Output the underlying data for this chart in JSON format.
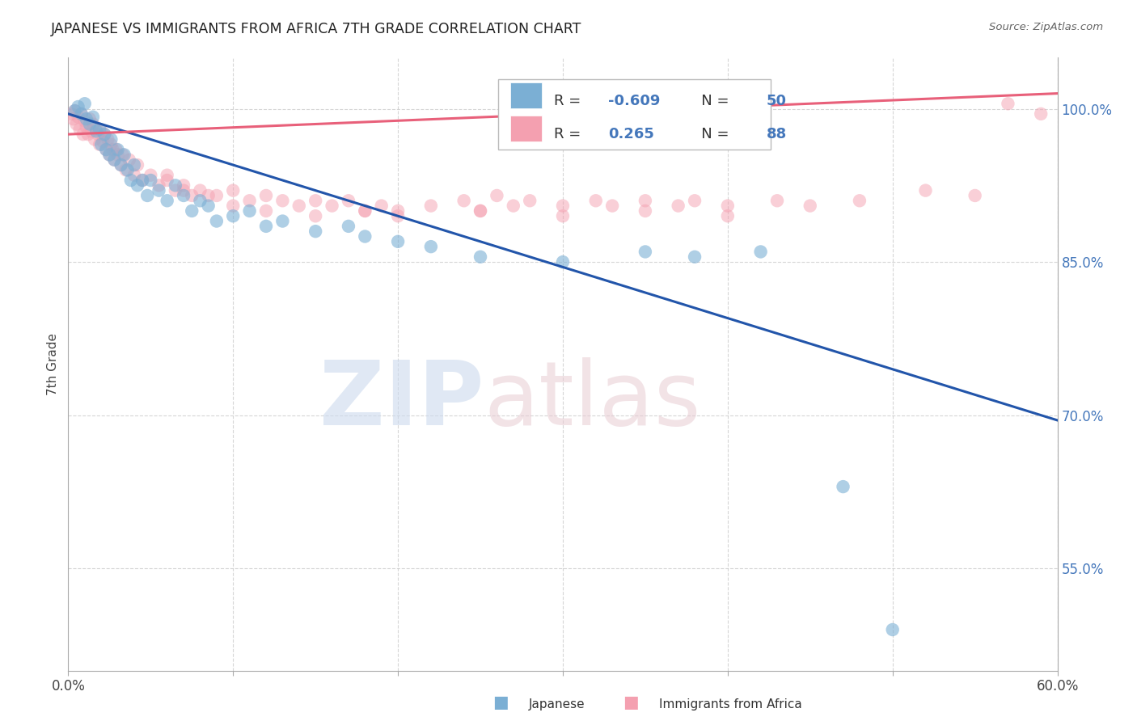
{
  "title": "JAPANESE VS IMMIGRANTS FROM AFRICA 7TH GRADE CORRELATION CHART",
  "source": "Source: ZipAtlas.com",
  "ylabel": "7th Grade",
  "xlim": [
    0.0,
    60.0
  ],
  "ylim": [
    45.0,
    105.0
  ],
  "yticks": [
    55.0,
    70.0,
    85.0,
    100.0
  ],
  "xtick_positions": [
    0,
    10,
    20,
    30,
    40,
    50,
    60
  ],
  "legend_japanese_R": "-0.609",
  "legend_japanese_N": "50",
  "legend_africa_R": "0.265",
  "legend_africa_N": "88",
  "japanese_color": "#7bafd4",
  "africa_color": "#f4a0b0",
  "japanese_line_color": "#2255aa",
  "africa_line_color": "#e8607a",
  "ytick_color": "#4477bb",
  "japanese_points": [
    [
      0.4,
      99.8
    ],
    [
      0.6,
      100.2
    ],
    [
      0.8,
      99.5
    ],
    [
      1.0,
      100.5
    ],
    [
      1.1,
      99.0
    ],
    [
      1.3,
      98.5
    ],
    [
      1.5,
      99.2
    ],
    [
      1.7,
      97.8
    ],
    [
      1.9,
      98.0
    ],
    [
      2.0,
      96.5
    ],
    [
      2.2,
      97.5
    ],
    [
      2.3,
      96.0
    ],
    [
      2.5,
      95.5
    ],
    [
      2.6,
      97.0
    ],
    [
      2.8,
      95.0
    ],
    [
      3.0,
      96.0
    ],
    [
      3.2,
      94.5
    ],
    [
      3.4,
      95.5
    ],
    [
      3.6,
      94.0
    ],
    [
      3.8,
      93.0
    ],
    [
      4.0,
      94.5
    ],
    [
      4.2,
      92.5
    ],
    [
      4.5,
      93.0
    ],
    [
      4.8,
      91.5
    ],
    [
      5.0,
      93.0
    ],
    [
      5.5,
      92.0
    ],
    [
      6.0,
      91.0
    ],
    [
      6.5,
      92.5
    ],
    [
      7.0,
      91.5
    ],
    [
      7.5,
      90.0
    ],
    [
      8.0,
      91.0
    ],
    [
      8.5,
      90.5
    ],
    [
      9.0,
      89.0
    ],
    [
      10.0,
      89.5
    ],
    [
      11.0,
      90.0
    ],
    [
      12.0,
      88.5
    ],
    [
      13.0,
      89.0
    ],
    [
      15.0,
      88.0
    ],
    [
      17.0,
      88.5
    ],
    [
      18.0,
      87.5
    ],
    [
      20.0,
      87.0
    ],
    [
      22.0,
      86.5
    ],
    [
      25.0,
      85.5
    ],
    [
      30.0,
      85.0
    ],
    [
      35.0,
      86.0
    ],
    [
      38.0,
      85.5
    ],
    [
      42.0,
      86.0
    ],
    [
      47.0,
      63.0
    ],
    [
      50.0,
      49.0
    ]
  ],
  "africa_points": [
    [
      0.2,
      99.5
    ],
    [
      0.3,
      99.0
    ],
    [
      0.4,
      99.8
    ],
    [
      0.5,
      98.5
    ],
    [
      0.6,
      99.2
    ],
    [
      0.7,
      98.0
    ],
    [
      0.8,
      99.5
    ],
    [
      0.9,
      97.5
    ],
    [
      1.0,
      98.8
    ],
    [
      1.1,
      98.2
    ],
    [
      1.2,
      97.5
    ],
    [
      1.3,
      99.0
    ],
    [
      1.4,
      97.8
    ],
    [
      1.5,
      98.5
    ],
    [
      1.6,
      97.0
    ],
    [
      1.7,
      98.0
    ],
    [
      1.8,
      97.5
    ],
    [
      1.9,
      96.5
    ],
    [
      2.0,
      97.8
    ],
    [
      2.1,
      96.8
    ],
    [
      2.2,
      97.5
    ],
    [
      2.3,
      96.0
    ],
    [
      2.4,
      97.0
    ],
    [
      2.5,
      95.5
    ],
    [
      2.6,
      96.5
    ],
    [
      2.7,
      96.0
    ],
    [
      2.8,
      95.0
    ],
    [
      2.9,
      96.0
    ],
    [
      3.0,
      95.5
    ],
    [
      3.2,
      94.5
    ],
    [
      3.3,
      95.5
    ],
    [
      3.5,
      94.0
    ],
    [
      3.7,
      95.0
    ],
    [
      4.0,
      93.5
    ],
    [
      4.2,
      94.5
    ],
    [
      4.5,
      93.0
    ],
    [
      5.0,
      93.5
    ],
    [
      5.5,
      92.5
    ],
    [
      6.0,
      93.0
    ],
    [
      6.5,
      92.0
    ],
    [
      7.0,
      92.5
    ],
    [
      7.5,
      91.5
    ],
    [
      8.0,
      92.0
    ],
    [
      9.0,
      91.5
    ],
    [
      10.0,
      92.0
    ],
    [
      11.0,
      91.0
    ],
    [
      12.0,
      91.5
    ],
    [
      13.0,
      91.0
    ],
    [
      14.0,
      90.5
    ],
    [
      15.0,
      91.0
    ],
    [
      16.0,
      90.5
    ],
    [
      17.0,
      91.0
    ],
    [
      18.0,
      90.0
    ],
    [
      19.0,
      90.5
    ],
    [
      20.0,
      90.0
    ],
    [
      22.0,
      90.5
    ],
    [
      24.0,
      91.0
    ],
    [
      25.0,
      90.0
    ],
    [
      26.0,
      91.5
    ],
    [
      27.0,
      90.5
    ],
    [
      28.0,
      91.0
    ],
    [
      30.0,
      90.5
    ],
    [
      32.0,
      91.0
    ],
    [
      33.0,
      90.5
    ],
    [
      35.0,
      91.0
    ],
    [
      37.0,
      90.5
    ],
    [
      38.0,
      91.0
    ],
    [
      40.0,
      90.5
    ],
    [
      43.0,
      91.0
    ],
    [
      45.0,
      90.5
    ],
    [
      6.0,
      93.5
    ],
    [
      7.0,
      92.0
    ],
    [
      8.5,
      91.5
    ],
    [
      10.0,
      90.5
    ],
    [
      12.0,
      90.0
    ],
    [
      15.0,
      89.5
    ],
    [
      18.0,
      90.0
    ],
    [
      20.0,
      89.5
    ],
    [
      25.0,
      90.0
    ],
    [
      30.0,
      89.5
    ],
    [
      35.0,
      90.0
    ],
    [
      40.0,
      89.5
    ],
    [
      48.0,
      91.0
    ],
    [
      52.0,
      92.0
    ],
    [
      55.0,
      91.5
    ],
    [
      57.0,
      100.5
    ],
    [
      59.0,
      99.5
    ]
  ],
  "japanese_trendline_x": [
    0.0,
    60.0
  ],
  "japanese_trendline_y": [
    99.5,
    69.5
  ],
  "africa_trendline_x": [
    0.0,
    60.0
  ],
  "africa_trendline_y": [
    97.5,
    101.5
  ]
}
